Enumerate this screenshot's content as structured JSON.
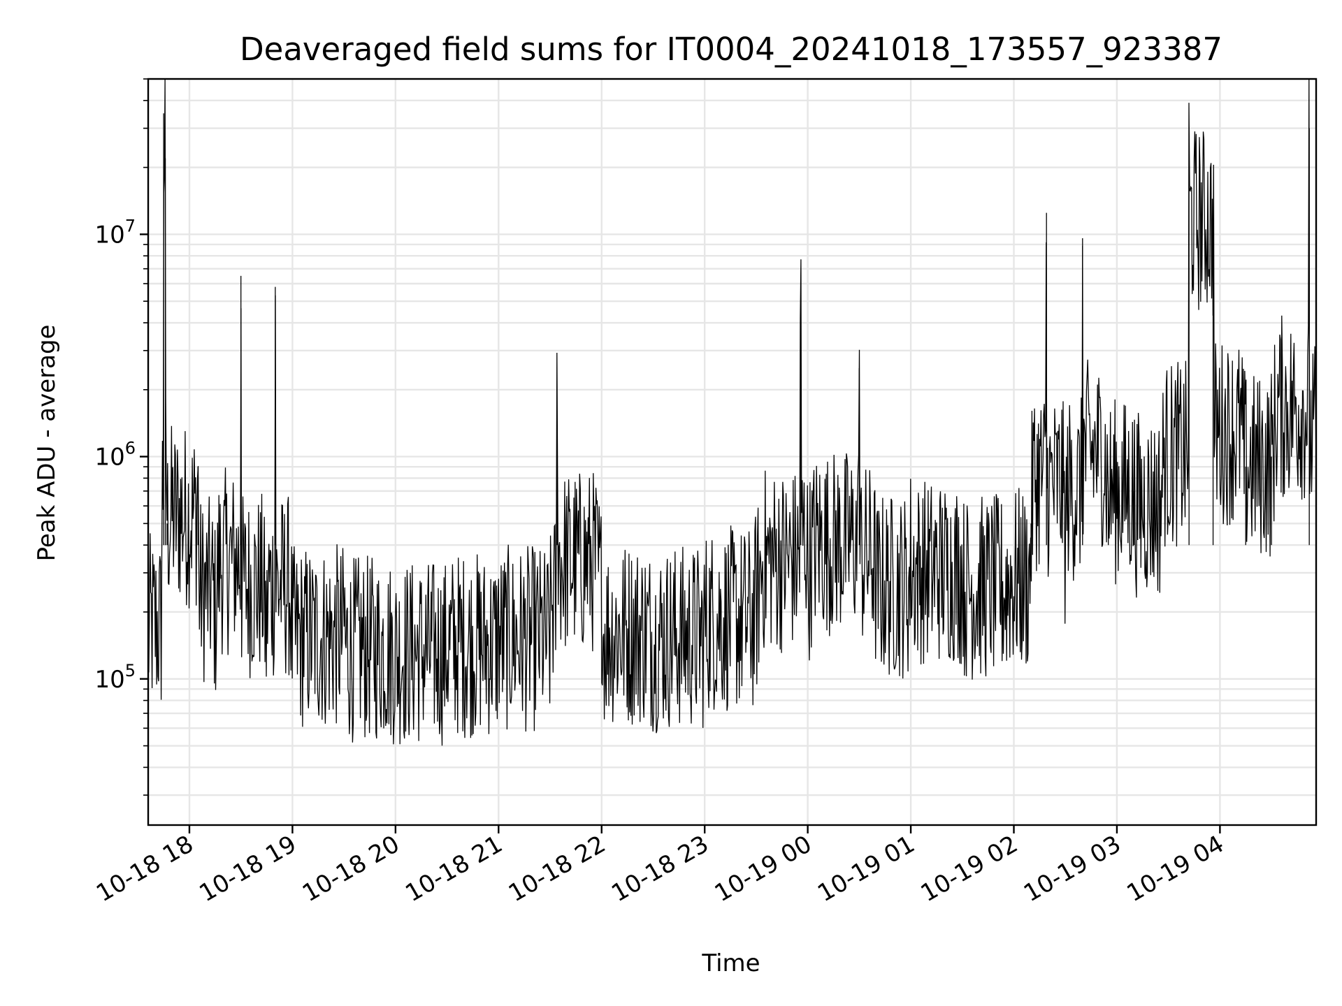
{
  "chart_data": {
    "type": "line",
    "title": "Deaveraged field sums for IT0004_20241018_173557_923387",
    "xlabel": "Time",
    "ylabel": "Peak ADU - average",
    "y_scale": "log",
    "grid": "both",
    "x_tick_labels": [
      "10-18 18",
      "10-18 19",
      "10-18 20",
      "10-18 21",
      "10-18 22",
      "10-18 23",
      "10-19 00",
      "10-19 01",
      "10-19 02",
      "10-19 03",
      "10-19 04"
    ],
    "x_ticks": [
      "2024-10-18T18:00",
      "2024-10-18T19:00",
      "2024-10-18T20:00",
      "2024-10-18T21:00",
      "2024-10-18T22:00",
      "2024-10-18T23:00",
      "2024-10-19T00:00",
      "2024-10-19T01:00",
      "2024-10-19T02:00",
      "2024-10-19T03:00",
      "2024-10-19T04:00"
    ],
    "xlim": [
      "2024-10-18T17:36",
      "2024-10-19T04:56"
    ],
    "y_tick_labels": [
      {
        "base": "10",
        "exp": "5",
        "value": 100000
      },
      {
        "base": "10",
        "exp": "6",
        "value": 1000000
      },
      {
        "base": "10",
        "exp": "7",
        "value": 10000000
      }
    ],
    "ylim": [
      22000,
      50000000
    ],
    "series": [
      {
        "color": "#000000",
        "x": [
          "2024-10-18T17:36",
          "2024-10-18T17:44",
          "2024-10-18T17:45",
          "2024-10-18T17:46",
          "2024-10-18T17:47",
          "2024-10-18T18:05",
          "2024-10-18T18:15",
          "2024-10-18T18:30",
          "2024-10-18T18:45",
          "2024-10-18T18:50",
          "2024-10-18T19:00",
          "2024-10-18T19:30",
          "2024-10-18T20:00",
          "2024-10-18T20:30",
          "2024-10-18T21:00",
          "2024-10-18T21:30",
          "2024-10-18T21:34",
          "2024-10-18T22:00",
          "2024-10-18T22:30",
          "2024-10-18T23:00",
          "2024-10-18T23:30",
          "2024-10-18T23:56",
          "2024-10-19T00:00",
          "2024-10-19T00:30",
          "2024-10-19T00:40",
          "2024-10-19T01:00",
          "2024-10-19T01:30",
          "2024-10-19T01:55",
          "2024-10-19T02:10",
          "2024-10-19T02:19",
          "2024-10-19T02:30",
          "2024-10-19T02:40",
          "2024-10-19T02:55",
          "2024-10-19T03:10",
          "2024-10-19T03:25",
          "2024-10-19T03:42",
          "2024-10-19T03:56",
          "2024-10-19T04:15",
          "2024-10-19T04:30",
          "2024-10-19T04:52",
          "2024-10-19T04:56"
        ],
        "values": [
          150000,
          380000,
          35000000,
          22000000,
          500000,
          900000,
          200000,
          6500000,
          150000,
          5800000,
          150000,
          180000,
          130000,
          140000,
          160000,
          150000,
          1800000,
          250000,
          150000,
          180000,
          220000,
          4200000,
          300000,
          2500000,
          250000,
          350000,
          300000,
          250000,
          500000,
          12500000,
          450000,
          9600000,
          700000,
          700000,
          600000,
          21000000,
          10500000,
          900000,
          1000000,
          30000000,
          700000
        ]
      }
    ]
  }
}
